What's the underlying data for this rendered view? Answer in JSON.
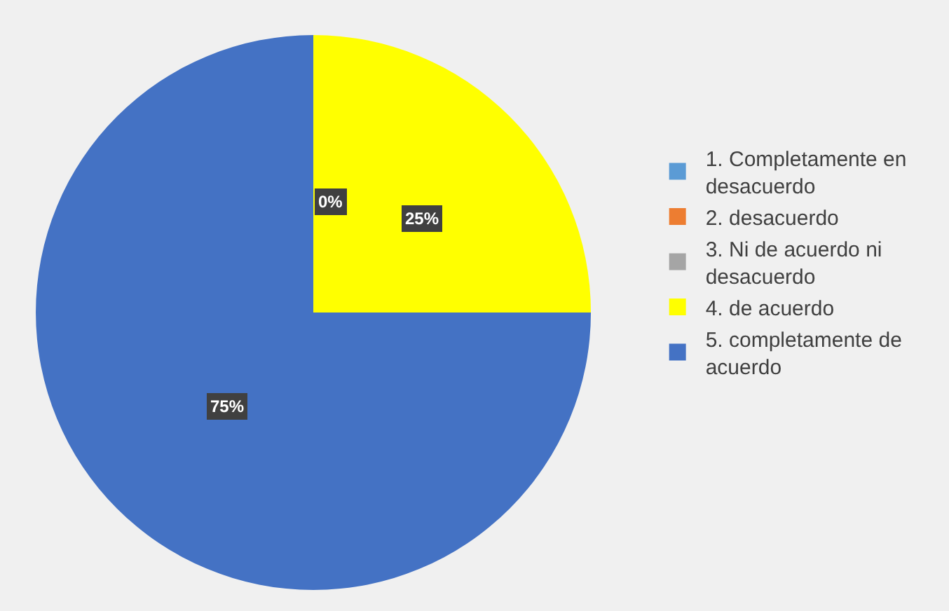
{
  "chart_data": {
    "type": "pie",
    "categories": [
      "1. Completamente en desacuerdo",
      "2. desacuerdo",
      "3. Ni de acuerdo ni desacuerdo",
      "4. de acuerdo",
      "5. completamente de acuerdo"
    ],
    "values": [
      0,
      0,
      0,
      25,
      75
    ],
    "colors": [
      "#5b9bd5",
      "#ed7d31",
      "#a5a5a5",
      "#ffff00",
      "#4472c4"
    ],
    "value_labels": [
      "0%",
      null,
      null,
      "25%",
      "75%"
    ],
    "legend": "right"
  }
}
